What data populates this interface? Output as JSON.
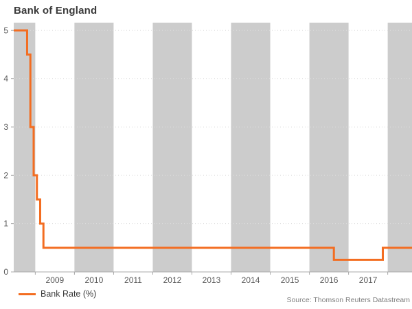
{
  "header": {
    "title": "Bank of England"
  },
  "legend": {
    "label": "Bank Rate (%)"
  },
  "source": {
    "text": "Source: Thomson Reuters Datastream"
  },
  "colors": {
    "line": "#f36d21",
    "band": "#cccccc",
    "axis": "#a8a8a8",
    "grid": "#dddddd",
    "tick_label": "#595959",
    "title_text": "#3a3a3a",
    "legend_text": "#3a3a3a",
    "source_text": "#7f7f7f"
  },
  "chart_data": {
    "type": "line",
    "title": "Bank of England",
    "xlabel": "",
    "ylabel": "",
    "ylim": [
      0,
      5.16
    ],
    "y_ticks": [
      0,
      1,
      2,
      3,
      4,
      5
    ],
    "x_domain_years": [
      2008.45,
      2018.62
    ],
    "x_boundary_ticks": [
      2009,
      2010,
      2011,
      2012,
      2013,
      2014,
      2015,
      2016,
      2017,
      2018
    ],
    "x_year_labels": [
      "2009",
      "2010",
      "2011",
      "2012",
      "2013",
      "2014",
      "2015",
      "2016",
      "2017"
    ],
    "shaded_years": [
      2008,
      2010,
      2012,
      2014,
      2016,
      2018
    ],
    "grid": "horizontal-dotted",
    "legend_position": "bottom-left",
    "series": [
      {
        "name": "Bank Rate (%)",
        "color": "#f36d21",
        "step": "post",
        "rate_changes": [
          [
            "2008-04",
            5.0
          ],
          [
            "2008-10",
            4.5
          ],
          [
            "2008-11",
            3.0
          ],
          [
            "2008-12",
            2.0
          ],
          [
            "2009-01",
            1.5
          ],
          [
            "2009-02",
            1.0
          ],
          [
            "2009-03",
            0.5
          ],
          [
            "2016-08",
            0.25
          ],
          [
            "2017-11",
            0.5
          ]
        ]
      }
    ]
  }
}
